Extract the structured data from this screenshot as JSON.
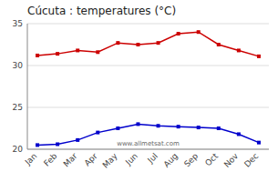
{
  "chart_data": {
    "type": "line",
    "title": "Cúcuta : temperatures (°C)",
    "categories": [
      "Jan",
      "Feb",
      "Mar",
      "Apr",
      "May",
      "Jun",
      "Jul",
      "Aug",
      "Sep",
      "Oct",
      "Nov",
      "Dec"
    ],
    "series": [
      {
        "color": "#cc0000",
        "marker": "square",
        "values": [
          31.2,
          31.4,
          31.8,
          31.6,
          32.7,
          32.5,
          32.7,
          33.8,
          34.0,
          32.5,
          31.8,
          31.1
        ]
      },
      {
        "color": "#0000cc",
        "marker": "square",
        "values": [
          20.5,
          20.6,
          21.1,
          22.0,
          22.5,
          23.0,
          22.8,
          22.7,
          22.6,
          22.5,
          21.8,
          20.8
        ]
      }
    ],
    "ylim": [
      20,
      35
    ],
    "yticks": [
      20,
      25,
      30,
      35
    ],
    "grid": true,
    "annotations": [
      "www.allmetsat.com"
    ]
  }
}
